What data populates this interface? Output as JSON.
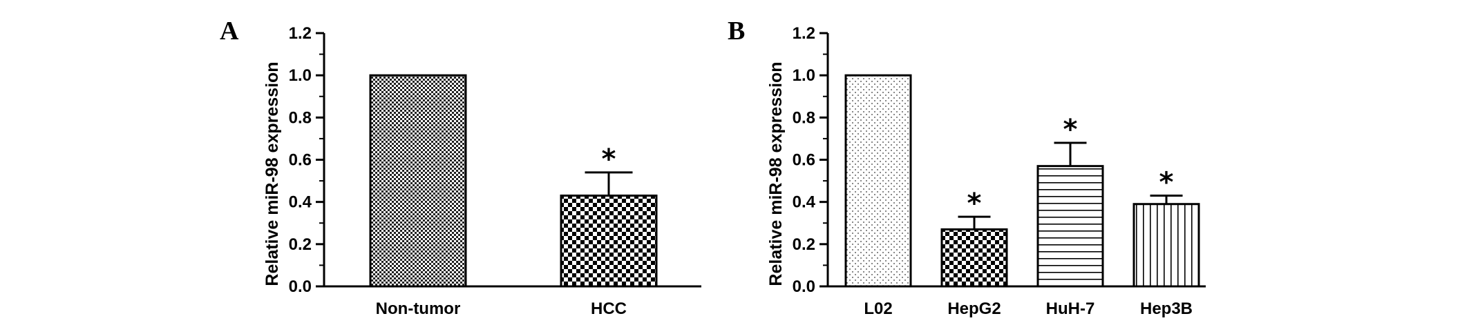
{
  "panels": [
    {
      "letter": "A",
      "ylabel": "Relative miR-98 expression",
      "ticks": [
        "0.0",
        "0.2",
        "0.4",
        "0.6",
        "0.8",
        "1.0",
        "1.2"
      ]
    },
    {
      "letter": "B",
      "ylabel": "Relative miR-98 expression",
      "ticks": [
        "0.0",
        "0.2",
        "0.4",
        "0.6",
        "0.8",
        "1.0",
        "1.2"
      ]
    }
  ],
  "significance_marker": "*",
  "chart_data": [
    {
      "type": "bar",
      "panel": "A",
      "title": "",
      "xlabel": "",
      "ylabel": "Relative miR-98 expression",
      "ylim": [
        0,
        1.2
      ],
      "yticks": [
        0.0,
        0.2,
        0.4,
        0.6,
        0.8,
        1.0,
        1.2
      ],
      "categories": [
        "Non-tumor",
        "HCC"
      ],
      "values": [
        1.0,
        0.43
      ],
      "error": [
        0,
        0.11
      ],
      "significant": [
        false,
        true
      ],
      "patterns": [
        "fine-checker",
        "coarse-checker"
      ],
      "grid": false,
      "legend": "none"
    },
    {
      "type": "bar",
      "panel": "B",
      "title": "",
      "xlabel": "",
      "ylabel": "Relative miR-98 expression",
      "ylim": [
        0,
        1.2
      ],
      "yticks": [
        0.0,
        0.2,
        0.4,
        0.6,
        0.8,
        1.0,
        1.2
      ],
      "categories": [
        "L02",
        "HepG2",
        "HuH-7",
        "Hep3B"
      ],
      "values": [
        1.0,
        0.27,
        0.57,
        0.39
      ],
      "error": [
        0,
        0.06,
        0.11,
        0.04
      ],
      "significant": [
        false,
        true,
        true,
        true
      ],
      "patterns": [
        "dots",
        "coarse-checker",
        "horizontal-lines",
        "vertical-lines"
      ],
      "grid": false,
      "legend": "none"
    }
  ]
}
